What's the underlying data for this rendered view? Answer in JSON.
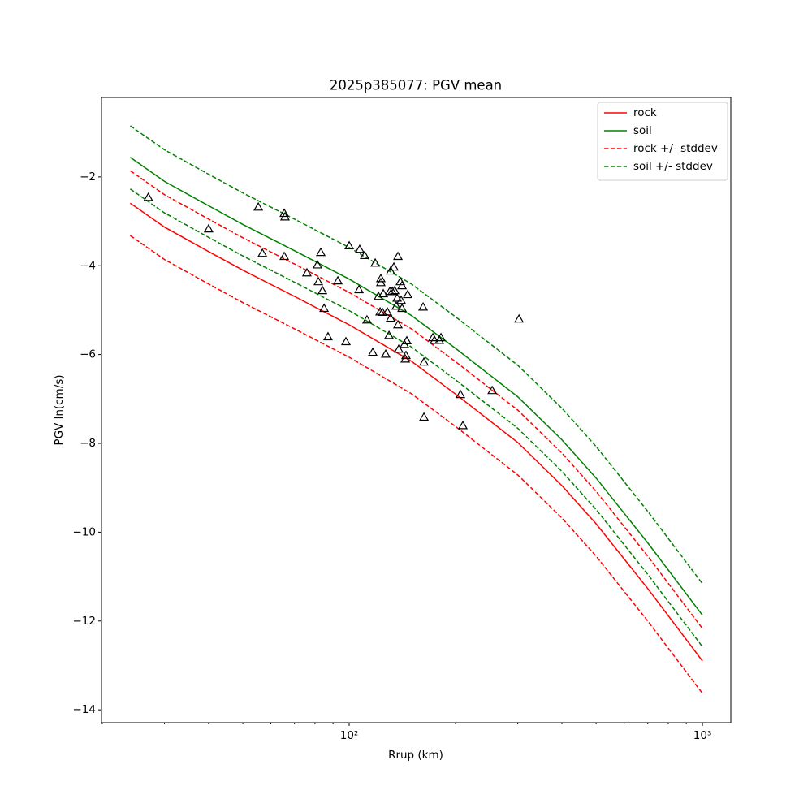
{
  "chart_data": {
    "type": "line",
    "title": "2025p385077: PGV mean",
    "x_label": "Rrup (km)",
    "y_label": "PGV ln(cm/s)",
    "xscale": "log",
    "xlim": [
      19.9,
      1203
    ],
    "ylim": [
      -14.29,
      -0.21
    ],
    "xticks": [
      {
        "value": 100,
        "label": "10²"
      },
      {
        "value": 1000,
        "label": "10³"
      }
    ],
    "xminorticks": [
      20,
      30,
      40,
      50,
      60,
      70,
      80,
      90,
      200,
      300,
      400,
      500,
      600,
      700,
      800,
      900
    ],
    "yticks": [
      {
        "value": -14,
        "label": "−14"
      },
      {
        "value": -12,
        "label": "−12"
      },
      {
        "value": -10,
        "label": "−10"
      },
      {
        "value": -8,
        "label": "−8"
      },
      {
        "value": -6,
        "label": "−6"
      },
      {
        "value": -4,
        "label": "−4"
      },
      {
        "value": -2,
        "label": "−2"
      }
    ],
    "legend": "upper right",
    "x": [
      24,
      30,
      40,
      50,
      70,
      100,
      150,
      200,
      300,
      400,
      500,
      700,
      1000
    ],
    "series": [
      {
        "name": "rock",
        "color": "#ff0000",
        "dashed": false,
        "values": [
          -2.59,
          -3.13,
          -3.68,
          -4.1,
          -4.69,
          -5.33,
          -6.15,
          -6.89,
          -7.98,
          -8.95,
          -9.81,
          -11.27,
          -12.9
        ]
      },
      {
        "name": "soil",
        "color": "#008000",
        "dashed": false,
        "values": [
          -1.56,
          -2.1,
          -2.65,
          -3.07,
          -3.66,
          -4.3,
          -5.12,
          -5.86,
          -6.95,
          -7.92,
          -8.78,
          -10.24,
          -11.87
        ]
      },
      {
        "name": "rock +/- stddev",
        "color": "#ff0000",
        "dashed": true,
        "values": [
          -1.86,
          -2.4,
          -2.95,
          -3.37,
          -3.96,
          -4.6,
          -5.42,
          -6.16,
          -7.25,
          -8.22,
          -9.08,
          -10.54,
          -12.17
        ],
        "values_lower": [
          -3.32,
          -3.86,
          -4.41,
          -4.83,
          -5.42,
          -6.06,
          -6.88,
          -7.62,
          -8.71,
          -9.68,
          -10.54,
          -12.0,
          -13.63
        ]
      },
      {
        "name": "soil +/- stddev",
        "color": "#008000",
        "dashed": true,
        "values": [
          -0.85,
          -1.39,
          -1.94,
          -2.36,
          -2.95,
          -3.59,
          -4.41,
          -5.15,
          -6.24,
          -7.21,
          -8.07,
          -9.53,
          -11.16
        ],
        "values_lower": [
          -2.27,
          -2.81,
          -3.36,
          -3.78,
          -4.37,
          -5.01,
          -5.83,
          -6.57,
          -7.66,
          -8.63,
          -9.49,
          -10.95,
          -12.58
        ]
      }
    ],
    "points": {
      "color": "#000000",
      "x": [
        27.0,
        40.0,
        55.3,
        56.8,
        65.5,
        65.8,
        65.5,
        75.9,
        81.3,
        83.1,
        81.8,
        84.0,
        84.9,
        87.1,
        92.9,
        97.9,
        100,
        106.6,
        107.1,
        110.6,
        112.3,
        116.6,
        118.5,
        121.0,
        122.3,
        122.9,
        122.9,
        124.2,
        124.9,
        126.9,
        128.2,
        129.6,
        130.3,
        131.0,
        131.0,
        132.4,
        133.8,
        134.5,
        135.9,
        136.7,
        137.4,
        137.4,
        138.1,
        139.6,
        140.3,
        141.1,
        141.1,
        143.3,
        144.1,
        144.8,
        145.6,
        146.4,
        161.9,
        162.8,
        162.8,
        172.5,
        174.3,
        180.0,
        181.9,
        206.5,
        209.8,
        254.0,
        302.5
      ],
      "y": [
        -2.46,
        -3.17,
        -2.68,
        -3.72,
        -2.82,
        -2.9,
        -3.79,
        -4.16,
        -3.98,
        -3.7,
        -4.36,
        -4.56,
        -4.96,
        -5.6,
        -4.34,
        -5.71,
        -3.55,
        -4.54,
        -3.63,
        -3.77,
        -5.22,
        -5.95,
        -3.94,
        -4.69,
        -5.04,
        -4.29,
        -4.38,
        -5.05,
        -4.63,
        -5.99,
        -5.04,
        -5.57,
        -4.58,
        -5.18,
        -4.12,
        -4.58,
        -4.03,
        -4.56,
        -4.91,
        -4.73,
        -5.33,
        -3.79,
        -5.88,
        -4.36,
        -4.78,
        -4.45,
        -4.96,
        -5.77,
        -6.1,
        -6.02,
        -5.69,
        -4.65,
        -4.93,
        -7.41,
        -6.17,
        -5.62,
        -5.68,
        -5.68,
        -5.62,
        -6.9,
        -7.6,
        -6.81,
        -5.2
      ]
    }
  }
}
